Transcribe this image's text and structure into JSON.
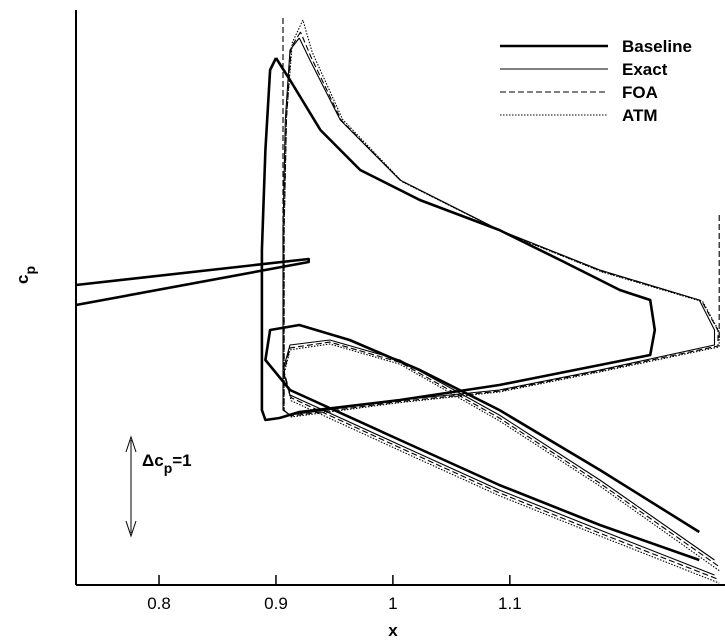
{
  "chart_data": {
    "type": "line",
    "x_label": "x",
    "y_label": {
      "main": "c",
      "sub": "p"
    },
    "annotation": {
      "main": "Δc",
      "sub": "p",
      "tail": "=1"
    },
    "xlim": [
      0.729,
      1.284
    ],
    "ylim": [
      0,
      6
    ],
    "xticks": [
      {
        "value": 0.8,
        "label": "0.8"
      },
      {
        "value": 0.9,
        "label": "0.9"
      },
      1,
      {
        "value": 1.1,
        "label": "1.1"
      }
    ],
    "legend": "upper right",
    "series": [
      {
        "name": "Baseline",
        "color": "#000000",
        "style": "thick",
        "x": [
          0.729,
          0.928,
          0.928,
          0.729,
          null,
          0.9,
          0.895,
          0.891,
          0.888,
          0.888,
          0.888,
          0.891,
          0.903,
          0.92,
          1.006,
          1.091,
          1.177,
          1.22,
          1.224,
          1.22,
          1.194,
          1.143,
          1.091,
          1.023,
          0.972,
          0.938,
          0.912,
          0.9,
          null,
          1.262,
          1.177,
          1.091,
          1.023,
          0.963,
          0.92,
          0.895,
          0.891,
          0.912,
          1.006,
          1.091,
          1.177,
          1.262
        ],
        "y": [
          3.125,
          3.396,
          3.365,
          2.917,
          null,
          5.49,
          5.365,
          4.531,
          3.49,
          2.448,
          1.823,
          1.719,
          1.74,
          1.802,
          1.927,
          2.083,
          2.292,
          2.396,
          2.656,
          2.969,
          3.073,
          3.385,
          3.698,
          4.01,
          4.323,
          4.74,
          5.26,
          5.49,
          null,
          0.552,
          1.198,
          1.823,
          2.24,
          2.552,
          2.708,
          2.656,
          2.344,
          2.031,
          1.51,
          1.042,
          0.625,
          0.26
        ]
      },
      {
        "name": "Exact",
        "color": "#000000",
        "style": "solid",
        "x": [
          0.92,
          0.912,
          0.908,
          0.906,
          0.906,
          0.912,
          1.006,
          1.091,
          1.177,
          1.275,
          1.275,
          1.262,
          1.177,
          1.091,
          1.006,
          0.955,
          0.929,
          0.92,
          null,
          1.275,
          1.177,
          1.091,
          1.006,
          0.946,
          0.912,
          0.906,
          0.912,
          1.006,
          1.091,
          1.177,
          1.275
        ],
        "y": [
          5.698,
          5.573,
          4.844,
          3.698,
          1.823,
          1.771,
          1.927,
          2.031,
          2.24,
          2.5,
          2.656,
          2.969,
          3.281,
          3.698,
          4.219,
          4.844,
          5.469,
          5.698,
          null,
          0.26,
          1.094,
          1.771,
          2.344,
          2.552,
          2.5,
          2.24,
          1.979,
          1.458,
          0.99,
          0.573,
          0.104
        ]
      },
      {
        "name": "FOA",
        "color": "#000000",
        "style": "dashed",
        "x": [
          0.906,
          0.906,
          null,
          1.279,
          1.279,
          null,
          0.921,
          0.913,
          0.909,
          0.907,
          0.907,
          0.913,
          1.006,
          1.091,
          1.177,
          1.278,
          1.278,
          1.264,
          1.178,
          1.092,
          1.007,
          0.956,
          0.93,
          0.921,
          null,
          1.278,
          1.177,
          1.091,
          1.006,
          0.946,
          0.912,
          0.907,
          0.913,
          1.006,
          1.091,
          1.177,
          1.278
        ],
        "y": [
          5.906,
          3.49,
          null,
          3.854,
          2.552,
          null,
          5.76,
          5.6,
          4.86,
          3.7,
          1.82,
          1.76,
          1.91,
          2.02,
          2.23,
          2.49,
          2.65,
          2.96,
          3.27,
          3.69,
          4.21,
          4.84,
          5.5,
          5.76,
          null,
          0.2,
          1.06,
          1.74,
          2.32,
          2.53,
          2.47,
          2.22,
          1.95,
          1.43,
          0.96,
          0.54,
          0.06
        ]
      },
      {
        "name": "ATM",
        "color": "#000000",
        "style": "dotted",
        "x": [
          0.923,
          0.914,
          0.909,
          0.907,
          0.907,
          0.913,
          1.006,
          1.091,
          1.177,
          1.279,
          1.279,
          1.265,
          1.179,
          1.093,
          1.008,
          0.957,
          0.931,
          0.923,
          null,
          1.279,
          1.177,
          1.091,
          1.006,
          0.946,
          0.912,
          0.907,
          0.913,
          1.006,
          1.091,
          1.177,
          1.279
        ],
        "y": [
          5.885,
          5.65,
          4.88,
          3.7,
          1.82,
          1.75,
          1.9,
          2.01,
          2.22,
          2.48,
          2.64,
          2.95,
          3.26,
          3.68,
          4.2,
          4.85,
          5.55,
          5.885,
          null,
          0.15,
          1.03,
          1.71,
          2.3,
          2.51,
          2.45,
          2.2,
          1.92,
          1.4,
          0.93,
          0.51,
          0.02
        ]
      }
    ]
  }
}
